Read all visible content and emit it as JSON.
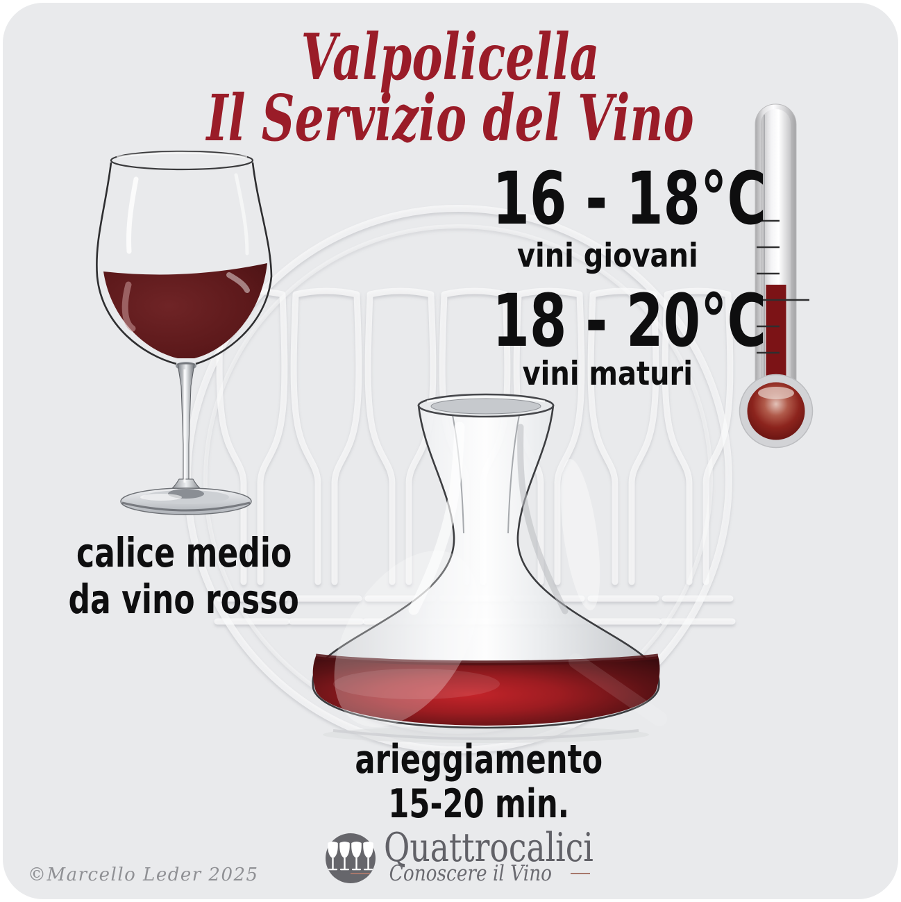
{
  "title": {
    "line1": "Valpolicella",
    "line2": "Il Servizio del Vino"
  },
  "serving_temperatures": {
    "young": {
      "range": "16 - 18°C",
      "label": "vini giovani"
    },
    "mature": {
      "range": "18 - 20°C",
      "label": "vini maturi"
    }
  },
  "glass": {
    "caption_line1": "calice medio",
    "caption_line2": "da vino rosso"
  },
  "decanter": {
    "caption_line1": "arieggiamento",
    "caption_line2": "15-20 min."
  },
  "footer": {
    "brand": "Quattrocalici",
    "tagline": "Conoscere il Vino",
    "copyright": "©Marcello Leder 2025"
  },
  "colors": {
    "background": "#e9eaec",
    "accent_red": "#9a1c28",
    "text_black": "#0e0e0f",
    "glass_wine": "#5d191b",
    "decanter_wine_bright": "#c4242a",
    "thermometer_red": "#7c1316",
    "logo_gray": "#66666b",
    "tagline_brown": "#a7786c"
  },
  "icons": [
    "wine-glass-icon",
    "decanter-icon",
    "thermometer-icon",
    "quattrocalici-logo-icon",
    "watermark-glasses"
  ]
}
